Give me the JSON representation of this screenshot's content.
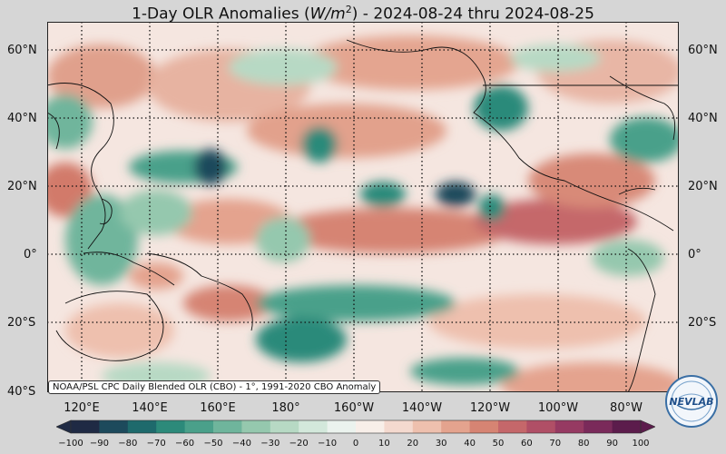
{
  "title": {
    "prefix": "1-Day OLR Anomalies (",
    "unit_var": "W/m",
    "unit_exp": "2",
    "suffix": ") - 2024-08-24 thru 2024-08-25"
  },
  "lat_labels_left": [
    "60°N",
    "40°N",
    "20°N",
    "0°",
    "20°S",
    "40°S"
  ],
  "lat_labels_right": [
    "60°N",
    "40°N",
    "20°N",
    "0°",
    "20°S"
  ],
  "lon_labels": [
    "120°E",
    "140°E",
    "160°E",
    "180°",
    "160°W",
    "140°W",
    "120°W",
    "100°W",
    "80°W"
  ],
  "credit": "NOAA/PSL CPC Daily Blended OLR (CBO) - 1°, 1991-2020 CBO Anomaly",
  "colorbar": {
    "ticks": [
      "−100",
      "−90",
      "−80",
      "−70",
      "−60",
      "−50",
      "−40",
      "−30",
      "−20",
      "−10",
      "0",
      "10",
      "20",
      "30",
      "40",
      "50",
      "60",
      "70",
      "80",
      "90",
      "100"
    ],
    "colors": [
      "#1f2a44",
      "#1d4a5c",
      "#1e6a6c",
      "#2c8a7a",
      "#4aa08a",
      "#6fb59c",
      "#95c8ae",
      "#b7d9c4",
      "#d3e8db",
      "#ebf3ee",
      "#f8efe9",
      "#f4d9cf",
      "#eec0ae",
      "#e4a38e",
      "#d68473",
      "#c5676a",
      "#b04f66",
      "#963a62",
      "#7a2a5a",
      "#5c1c4c"
    ]
  },
  "logo": {
    "text": "NEVLAB"
  }
}
